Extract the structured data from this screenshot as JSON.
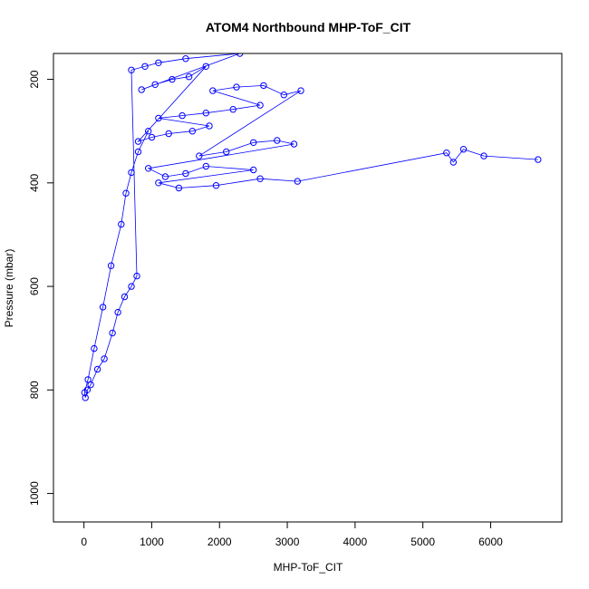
{
  "chart_data": {
    "type": "scatter",
    "title": "ATOM4 Northbound MHP-ToF_CIT",
    "xlabel": "MHP-ToF_CIT",
    "ylabel": "Pressure (mbar)",
    "xlim": [
      -450,
      7050
    ],
    "ylim": [
      1055,
      150
    ],
    "y_reversed": true,
    "x_ticks": [
      0,
      1000,
      2000,
      3000,
      4000,
      5000,
      6000
    ],
    "y_ticks": [
      200,
      400,
      600,
      800,
      1000
    ],
    "marker": "open-circle",
    "connected": true,
    "series_color": "#0000ff",
    "series": [
      {
        "values": [
          [
            6700,
            355
          ],
          [
            5900,
            348
          ],
          [
            5600,
            335
          ],
          [
            5450,
            360
          ],
          [
            5350,
            342
          ],
          [
            3150,
            397
          ],
          [
            2600,
            392
          ],
          [
            1950,
            405
          ],
          [
            1400,
            410
          ],
          [
            1100,
            400
          ],
          [
            2500,
            375
          ],
          [
            1800,
            368
          ],
          [
            1500,
            382
          ],
          [
            1200,
            388
          ],
          [
            950,
            372
          ],
          [
            3100,
            325
          ],
          [
            2850,
            318
          ],
          [
            2500,
            322
          ],
          [
            2100,
            340
          ],
          [
            1700,
            348
          ],
          [
            3200,
            222
          ],
          [
            2950,
            230
          ],
          [
            2650,
            212
          ],
          [
            2250,
            215
          ],
          [
            1900,
            222
          ],
          [
            2600,
            250
          ],
          [
            2200,
            258
          ],
          [
            1800,
            265
          ],
          [
            1450,
            270
          ],
          [
            1100,
            275
          ],
          [
            1850,
            290
          ],
          [
            1600,
            300
          ],
          [
            1250,
            305
          ],
          [
            1000,
            312
          ],
          [
            800,
            320
          ],
          [
            1800,
            175
          ],
          [
            1550,
            195
          ],
          [
            1300,
            200
          ],
          [
            1050,
            210
          ],
          [
            850,
            220
          ],
          [
            2300,
            150
          ],
          [
            1500,
            160
          ],
          [
            1100,
            168
          ],
          [
            900,
            175
          ],
          [
            700,
            182
          ],
          [
            780,
            580
          ],
          [
            700,
            600
          ],
          [
            600,
            620
          ],
          [
            500,
            650
          ],
          [
            420,
            690
          ],
          [
            300,
            740
          ],
          [
            200,
            760
          ],
          [
            100,
            790
          ],
          [
            50,
            800
          ],
          [
            20,
            815
          ],
          [
            10,
            805
          ],
          [
            60,
            780
          ],
          [
            150,
            720
          ],
          [
            280,
            640
          ],
          [
            400,
            560
          ],
          [
            550,
            480
          ],
          [
            620,
            420
          ],
          [
            700,
            380
          ],
          [
            800,
            340
          ],
          [
            950,
            300
          ]
        ]
      }
    ]
  }
}
